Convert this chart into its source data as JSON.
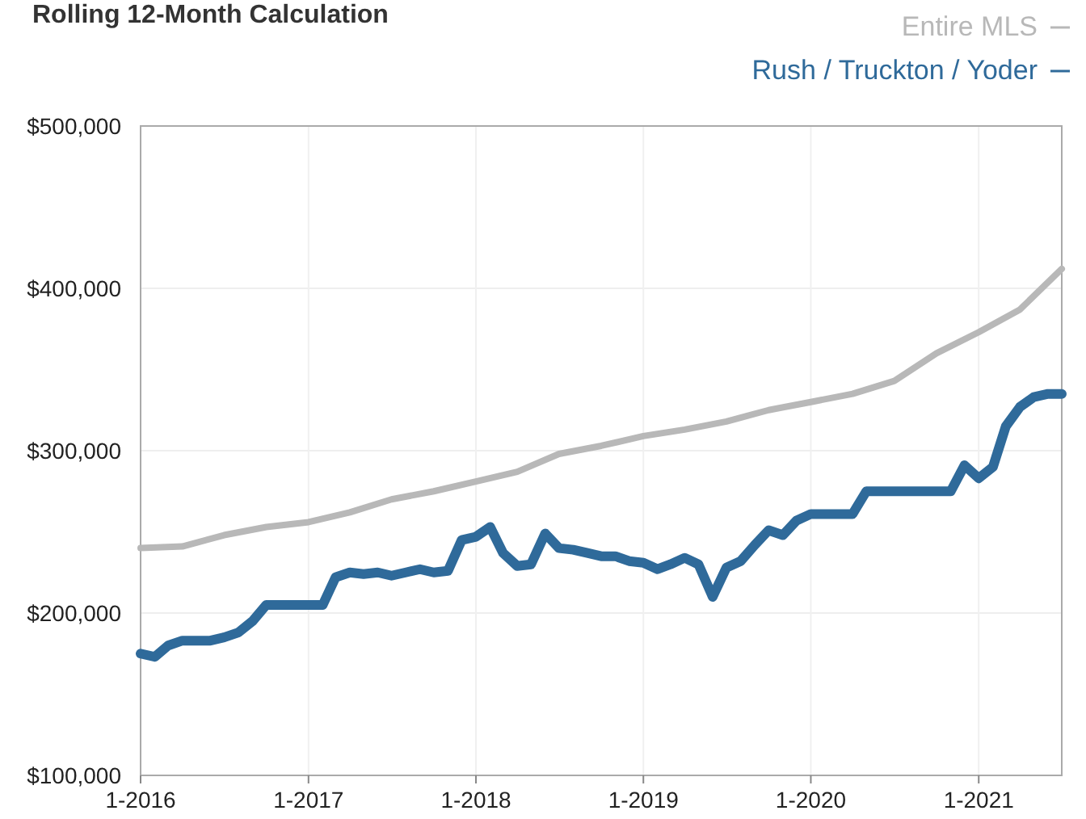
{
  "chart_data": {
    "type": "line",
    "title": "Rolling 12-Month Calculation",
    "legend": "top right",
    "grid": true,
    "line_style": "solid",
    "xlim": [
      "2016-01",
      "2021-07"
    ],
    "xticks": [
      {
        "value": "2016-01",
        "label": "1-2016"
      },
      {
        "value": "2017-01",
        "label": "1-2017"
      },
      {
        "value": "2018-01",
        "label": "1-2018"
      },
      {
        "value": "2019-01",
        "label": "1-2019"
      },
      {
        "value": "2020-01",
        "label": "1-2020"
      },
      {
        "value": "2021-01",
        "label": "1-2021"
      }
    ],
    "ylim": [
      100000,
      500000
    ],
    "yticks": [
      {
        "value": 100000,
        "label": "$100,000"
      },
      {
        "value": 200000,
        "label": "$200,000"
      },
      {
        "value": 300000,
        "label": "$300,000"
      },
      {
        "value": 400000,
        "label": "$400,000"
      },
      {
        "value": 500000,
        "label": "$500,000"
      }
    ],
    "series": [
      {
        "name": "Entire MLS",
        "color": "#b8b8b8",
        "x": [
          "2016-01",
          "2016-04",
          "2016-07",
          "2016-10",
          "2017-01",
          "2017-04",
          "2017-07",
          "2017-10",
          "2018-01",
          "2018-04",
          "2018-07",
          "2018-10",
          "2019-01",
          "2019-04",
          "2019-07",
          "2019-10",
          "2020-01",
          "2020-04",
          "2020-07",
          "2020-10",
          "2021-01",
          "2021-04",
          "2021-07"
        ],
        "values": [
          240000,
          241000,
          248000,
          253000,
          256000,
          262000,
          270000,
          275000,
          281000,
          287000,
          298000,
          303000,
          309000,
          313000,
          318000,
          325000,
          330000,
          335000,
          343000,
          360000,
          373000,
          387000,
          412000
        ]
      },
      {
        "name": "Rush / Truckton / Yoder",
        "color": "#2f6a9a",
        "x": [
          "2016-01",
          "2016-02",
          "2016-03",
          "2016-04",
          "2016-05",
          "2016-06",
          "2016-07",
          "2016-08",
          "2016-09",
          "2016-10",
          "2016-11",
          "2016-12",
          "2017-01",
          "2017-02",
          "2017-03",
          "2017-04",
          "2017-05",
          "2017-06",
          "2017-07",
          "2017-08",
          "2017-09",
          "2017-10",
          "2017-11",
          "2017-12",
          "2018-01",
          "2018-02",
          "2018-03",
          "2018-04",
          "2018-05",
          "2018-06",
          "2018-07",
          "2018-08",
          "2018-09",
          "2018-10",
          "2018-11",
          "2018-12",
          "2019-01",
          "2019-02",
          "2019-03",
          "2019-04",
          "2019-05",
          "2019-06",
          "2019-07",
          "2019-08",
          "2019-09",
          "2019-10",
          "2019-11",
          "2019-12",
          "2020-01",
          "2020-02",
          "2020-03",
          "2020-04",
          "2020-05",
          "2020-06",
          "2020-07",
          "2020-08",
          "2020-09",
          "2020-10",
          "2020-11",
          "2020-12",
          "2021-01",
          "2021-02",
          "2021-03",
          "2021-04",
          "2021-05",
          "2021-06",
          "2021-07"
        ],
        "values": [
          175000,
          173000,
          180000,
          183000,
          183000,
          183000,
          185000,
          188000,
          195000,
          205000,
          205000,
          205000,
          205000,
          205000,
          222000,
          225000,
          224000,
          225000,
          223000,
          225000,
          227000,
          225000,
          226000,
          245000,
          247000,
          253000,
          237000,
          229000,
          230000,
          249000,
          240000,
          239000,
          237000,
          235000,
          235000,
          232000,
          231000,
          227000,
          230000,
          234000,
          230000,
          210000,
          228000,
          232000,
          242000,
          251000,
          248000,
          257000,
          261000,
          261000,
          261000,
          261000,
          275000,
          275000,
          275000,
          275000,
          275000,
          275000,
          275000,
          291000,
          283000,
          290000,
          315000,
          327000,
          333000,
          335000,
          335000
        ]
      }
    ]
  }
}
